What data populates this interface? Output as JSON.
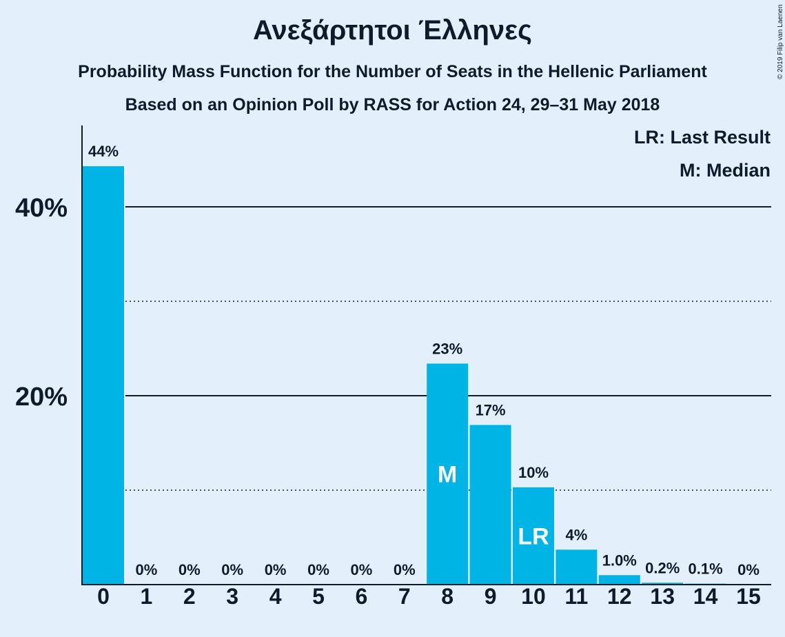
{
  "title": "Ανεξάρτητοι Έλληνες",
  "subtitle": "Probability Mass Function for the Number of Seats in the Hellenic Parliament",
  "subtitle2": "Based on an Opinion Poll by RASS for Action 24, 29–31 May 2018",
  "copyright": "© 2019 Filip van Laenen",
  "legend": {
    "last_result": "LR: Last Result",
    "median": "M: Median"
  },
  "colors": {
    "bar": "#00b4e6",
    "background": "#e3f0fc",
    "text": "#0e1b2c"
  },
  "chart_data": {
    "type": "bar",
    "categories": [
      "0",
      "1",
      "2",
      "3",
      "4",
      "5",
      "6",
      "7",
      "8",
      "9",
      "10",
      "11",
      "12",
      "13",
      "14",
      "15"
    ],
    "values": [
      44.3,
      0,
      0,
      0,
      0,
      0,
      0,
      0,
      23.4,
      16.9,
      10.3,
      3.7,
      1.0,
      0.2,
      0.1,
      0
    ],
    "value_labels": [
      "44%",
      "0%",
      "0%",
      "0%",
      "0%",
      "0%",
      "0%",
      "0%",
      "23%",
      "17%",
      "10%",
      "4%",
      "1.0%",
      "0.2%",
      "0.1%",
      "0%"
    ],
    "ylim": [
      0,
      48
    ],
    "yticks": [
      {
        "value": 20,
        "label": "20%"
      },
      {
        "value": 40,
        "label": "40%"
      }
    ],
    "minor_gridlines": [
      10,
      30
    ],
    "median_seat": "8",
    "median_marker": "M",
    "last_result_seat": "10",
    "last_result_marker": "LR",
    "legend_position": "top-right"
  }
}
